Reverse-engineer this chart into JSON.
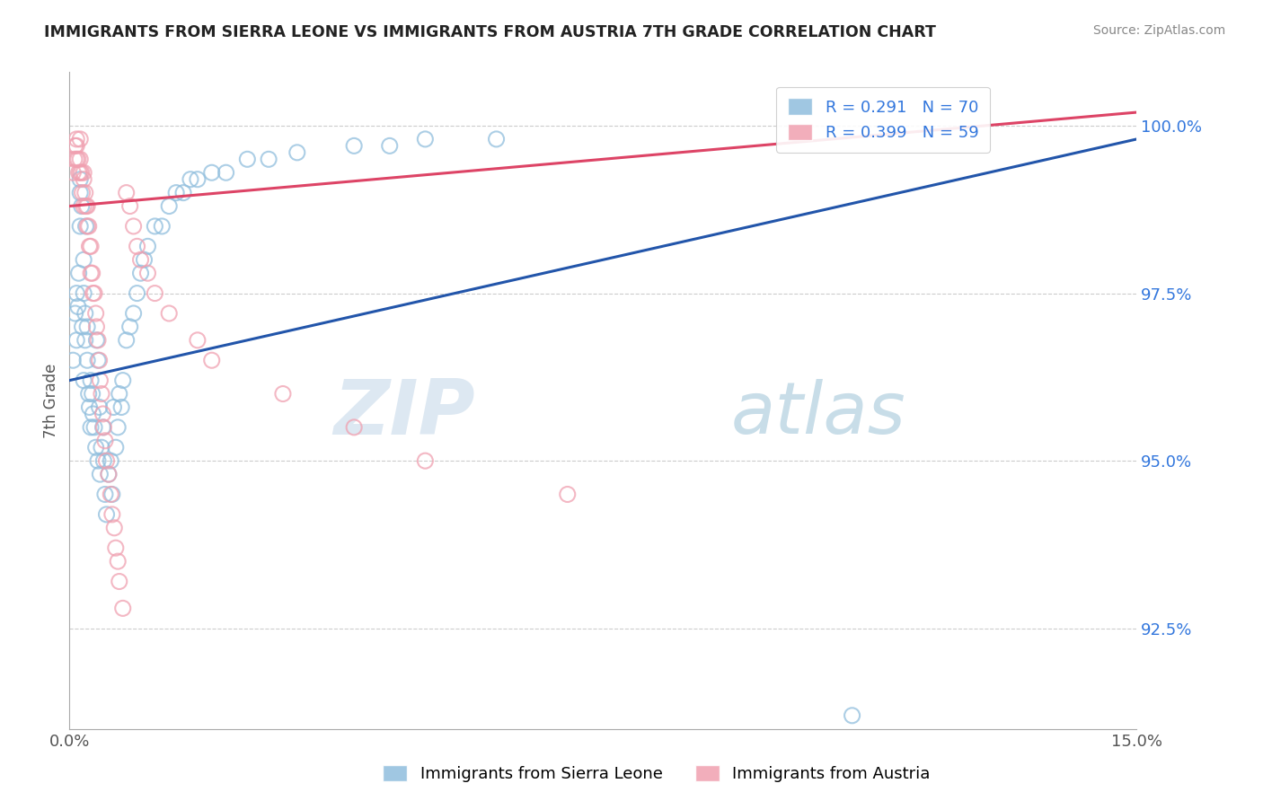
{
  "title": "IMMIGRANTS FROM SIERRA LEONE VS IMMIGRANTS FROM AUSTRIA 7TH GRADE CORRELATION CHART",
  "source": "Source: ZipAtlas.com",
  "xlabel_blue": "Immigrants from Sierra Leone",
  "xlabel_pink": "Immigrants from Austria",
  "ylabel": "7th Grade",
  "xlim": [
    0.0,
    15.0
  ],
  "ylim": [
    91.0,
    100.8
  ],
  "xtick_vals": [
    0.0,
    15.0
  ],
  "xticklabels": [
    "0.0%",
    "15.0%"
  ],
  "ytick_vals": [
    92.5,
    95.0,
    97.5,
    100.0
  ],
  "yticklabels": [
    "92.5%",
    "95.0%",
    "97.5%",
    "100.0%"
  ],
  "R_blue": 0.291,
  "N_blue": 70,
  "R_pink": 0.399,
  "N_pink": 59,
  "color_blue": "#90bedd",
  "color_pink": "#f0a0b0",
  "color_blue_line": "#2255aa",
  "color_pink_line": "#dd4466",
  "legend_text_color": "#3377dd",
  "watermark_color": "#dde8f0",
  "blue_x": [
    0.05,
    0.08,
    0.1,
    0.1,
    0.12,
    0.13,
    0.15,
    0.15,
    0.15,
    0.17,
    0.18,
    0.2,
    0.2,
    0.2,
    0.22,
    0.22,
    0.23,
    0.25,
    0.25,
    0.27,
    0.28,
    0.3,
    0.3,
    0.32,
    0.33,
    0.35,
    0.37,
    0.38,
    0.4,
    0.4,
    0.42,
    0.43,
    0.45,
    0.47,
    0.48,
    0.5,
    0.52,
    0.55,
    0.58,
    0.6,
    0.62,
    0.65,
    0.68,
    0.7,
    0.73,
    0.75,
    0.8,
    0.85,
    0.9,
    0.95,
    1.0,
    1.05,
    1.1,
    1.2,
    1.3,
    1.4,
    1.5,
    1.6,
    1.7,
    1.8,
    2.0,
    2.2,
    2.5,
    2.8,
    3.2,
    4.0,
    4.5,
    5.0,
    6.0,
    11.0
  ],
  "blue_y": [
    96.5,
    97.2,
    96.8,
    97.5,
    97.3,
    97.8,
    99.0,
    99.2,
    98.5,
    98.8,
    97.0,
    97.5,
    98.0,
    96.2,
    96.8,
    97.2,
    98.5,
    96.5,
    97.0,
    96.0,
    95.8,
    95.5,
    96.2,
    96.0,
    95.7,
    95.5,
    95.2,
    96.8,
    95.0,
    96.5,
    95.8,
    94.8,
    95.2,
    95.5,
    95.0,
    94.5,
    94.2,
    94.8,
    95.0,
    94.5,
    95.8,
    95.2,
    95.5,
    96.0,
    95.8,
    96.2,
    96.8,
    97.0,
    97.2,
    97.5,
    97.8,
    98.0,
    98.2,
    98.5,
    98.5,
    98.8,
    99.0,
    99.0,
    99.2,
    99.2,
    99.3,
    99.3,
    99.5,
    99.5,
    99.6,
    99.7,
    99.7,
    99.8,
    99.8,
    91.2
  ],
  "pink_x": [
    0.05,
    0.07,
    0.08,
    0.1,
    0.1,
    0.12,
    0.13,
    0.15,
    0.15,
    0.17,
    0.18,
    0.2,
    0.2,
    0.22,
    0.23,
    0.25,
    0.25,
    0.27,
    0.28,
    0.3,
    0.3,
    0.32,
    0.33,
    0.35,
    0.37,
    0.38,
    0.4,
    0.42,
    0.43,
    0.45,
    0.47,
    0.48,
    0.5,
    0.52,
    0.55,
    0.58,
    0.6,
    0.63,
    0.65,
    0.68,
    0.7,
    0.75,
    0.8,
    0.85,
    0.9,
    0.95,
    1.0,
    1.1,
    1.2,
    1.4,
    1.8,
    2.0,
    3.0,
    4.0,
    5.0,
    7.0,
    0.1,
    0.15,
    0.2
  ],
  "pink_y": [
    99.3,
    99.5,
    99.7,
    99.8,
    99.5,
    99.5,
    99.3,
    99.8,
    99.3,
    99.3,
    99.0,
    99.2,
    98.8,
    99.0,
    98.8,
    98.8,
    98.5,
    98.5,
    98.2,
    98.2,
    97.8,
    97.8,
    97.5,
    97.5,
    97.2,
    97.0,
    96.8,
    96.5,
    96.2,
    96.0,
    95.7,
    95.5,
    95.3,
    95.0,
    94.8,
    94.5,
    94.2,
    94.0,
    93.7,
    93.5,
    93.2,
    92.8,
    99.0,
    98.8,
    98.5,
    98.2,
    98.0,
    97.8,
    97.5,
    97.2,
    96.8,
    96.5,
    96.0,
    95.5,
    95.0,
    94.5,
    99.7,
    99.5,
    99.3
  ]
}
